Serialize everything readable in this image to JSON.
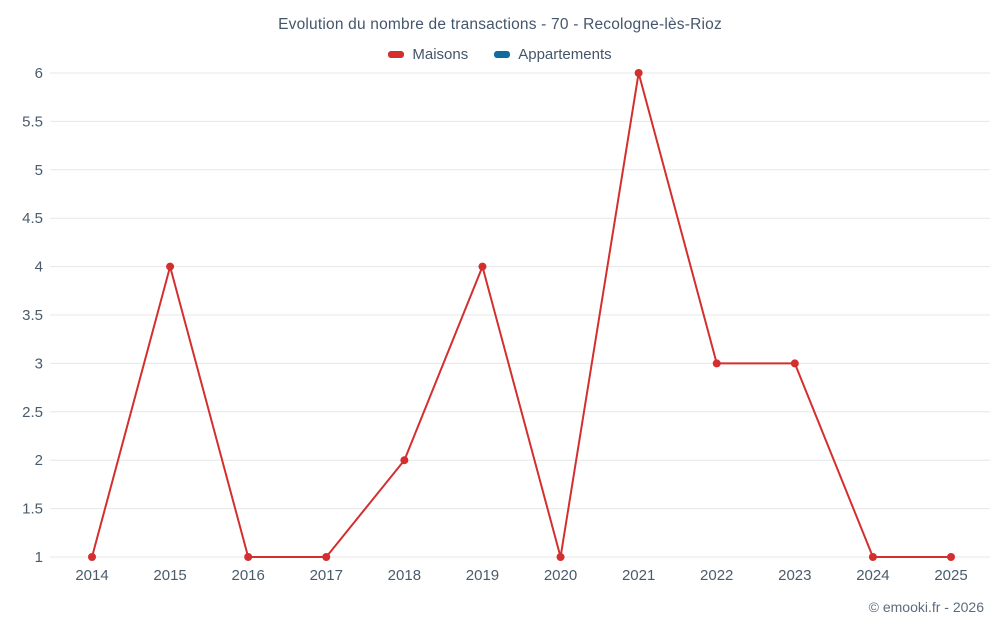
{
  "chart": {
    "title": "Evolution du nombre de transactions - 70 - Recologne-lès-Rioz",
    "copyright": "© emooki.fr - 2026"
  },
  "chart_data": {
    "type": "line",
    "categories": [
      "2014",
      "2015",
      "2016",
      "2017",
      "2018",
      "2019",
      "2020",
      "2021",
      "2022",
      "2023",
      "2024",
      "2025"
    ],
    "series": [
      {
        "name": "Maisons",
        "color": "#d32f2f",
        "values": [
          1,
          4,
          1,
          1,
          2,
          4,
          1,
          6,
          3,
          3,
          1,
          1
        ]
      },
      {
        "name": "Appartements",
        "color": "#106b9e",
        "values": []
      }
    ],
    "title": "Evolution du nombre de transactions - 70 - Recologne-lès-Rioz",
    "xlabel": "",
    "ylabel": "",
    "ylim": [
      1,
      6
    ],
    "ytick_step": 0.5,
    "grid": true,
    "grid_color": "#e7e7e7",
    "legend_position": "top"
  }
}
